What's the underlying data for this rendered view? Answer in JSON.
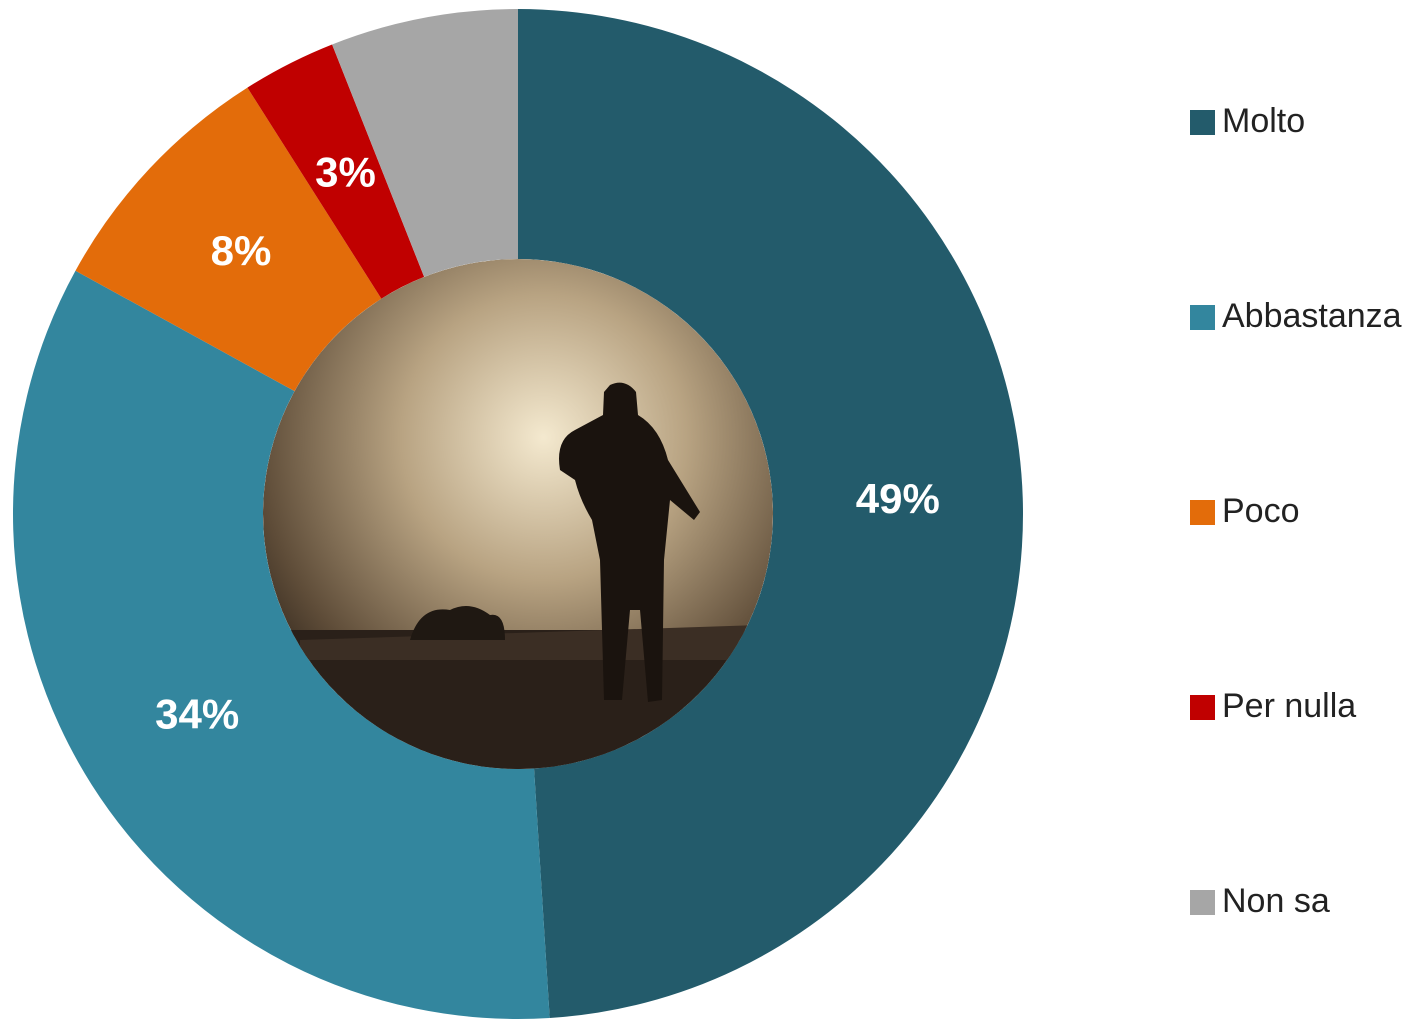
{
  "chart_data": {
    "type": "donut",
    "categories": [
      "Molto",
      "Abbastanza",
      "Poco",
      "Per nulla",
      "Non sa"
    ],
    "values": [
      49,
      34,
      8,
      3,
      6
    ],
    "value_labels": [
      "49%",
      "34%",
      "8%",
      "3%",
      null
    ],
    "colors": [
      "#235B6B",
      "#33869E",
      "#E36C0A",
      "#C00000",
      "#A6A6A6"
    ],
    "legend": "right"
  }
}
